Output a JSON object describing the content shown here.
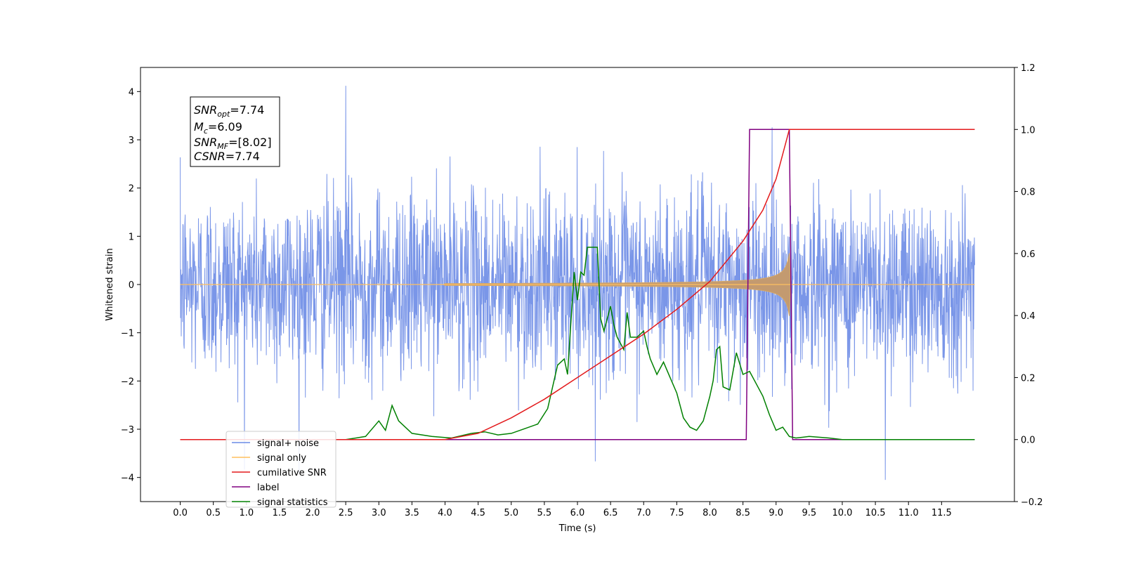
{
  "chart_data": {
    "type": "line",
    "xlabel": "Time (s)",
    "ylabel": "Whitened strain",
    "xlim": [
      -0.6,
      12.6
    ],
    "ylim": [
      -4.5,
      4.5
    ],
    "y2lim": [
      -0.2,
      1.2
    ],
    "grid": false,
    "legend_position": "bottom-left",
    "x_ticks": [
      "0.0",
      "0.5",
      "1.0",
      "1.5",
      "2.0",
      "2.5",
      "3.0",
      "3.5",
      "4.0",
      "4.5",
      "5.0",
      "5.5",
      "6.0",
      "6.5",
      "7.0",
      "7.5",
      "8.0",
      "8.5",
      "9.0",
      "9.5",
      "10.0",
      "10.5",
      "11.0",
      "11.5"
    ],
    "y_ticks": [
      "4",
      "3",
      "2",
      "1",
      "0",
      "−1",
      "−2",
      "−3",
      "−4"
    ],
    "y2_ticks": [
      "1.2",
      "1.0",
      "0.8",
      "0.6",
      "0.4",
      "0.2",
      "0.0",
      "−0.2"
    ],
    "annotation": [
      {
        "base": "SNR",
        "sub": "opt",
        "value": "=7.74"
      },
      {
        "base": "M",
        "sub": "c",
        "value": "=6.09"
      },
      {
        "base": "SNR",
        "sub": "MF",
        "value": "=[8.02]"
      },
      {
        "base": "CSNR",
        "sub": "",
        "value": "=7.74"
      }
    ],
    "signal_window": {
      "start": 4.0,
      "end": 9.2,
      "peak_amplitude": 0.65
    },
    "series": [
      {
        "name": "signal+ noise",
        "color": "#6b8be6",
        "axis": "left",
        "noise_std": 1.0,
        "max": 4.12,
        "min": -4.05,
        "x_range": [
          0.0,
          12.0
        ]
      },
      {
        "name": "signal only",
        "color": "#ffbf5f",
        "axis": "left"
      },
      {
        "name": "cumilative SNR",
        "color": "#e31a1c",
        "axis": "right",
        "x": [
          0.0,
          4.0,
          4.5,
          5.0,
          5.5,
          6.0,
          6.5,
          7.0,
          7.5,
          8.0,
          8.5,
          8.8,
          9.0,
          9.1,
          9.2,
          9.3,
          12.0
        ],
        "values": [
          0.0,
          0.0,
          0.02,
          0.07,
          0.13,
          0.2,
          0.27,
          0.34,
          0.42,
          0.51,
          0.64,
          0.74,
          0.84,
          0.92,
          1.0,
          1.0,
          1.0
        ]
      },
      {
        "name": "label",
        "color": "#800080",
        "axis": "right",
        "x": [
          0.0,
          8.55,
          8.6,
          9.2,
          9.25,
          12.0
        ],
        "values": [
          0.0,
          0.0,
          1.0,
          1.0,
          0.0,
          0.0
        ]
      },
      {
        "name": "signal statistics",
        "color": "#008000",
        "axis": "right",
        "x": [
          0.0,
          2.5,
          2.8,
          3.0,
          3.1,
          3.2,
          3.3,
          3.5,
          3.8,
          4.1,
          4.4,
          4.6,
          4.8,
          5.0,
          5.2,
          5.4,
          5.55,
          5.7,
          5.8,
          5.85,
          5.95,
          6.0,
          6.05,
          6.1,
          6.15,
          6.2,
          6.3,
          6.35,
          6.4,
          6.5,
          6.55,
          6.6,
          6.7,
          6.75,
          6.8,
          6.9,
          7.0,
          7.05,
          7.1,
          7.2,
          7.3,
          7.4,
          7.5,
          7.6,
          7.7,
          7.8,
          7.9,
          8.0,
          8.05,
          8.1,
          8.15,
          8.2,
          8.3,
          8.4,
          8.5,
          8.6,
          8.7,
          8.8,
          8.9,
          9.0,
          9.1,
          9.2,
          9.3,
          9.5,
          9.8,
          10.0,
          12.0
        ],
        "values": [
          0.0,
          0.0,
          0.01,
          0.06,
          0.03,
          0.11,
          0.06,
          0.02,
          0.01,
          0.005,
          0.02,
          0.025,
          0.015,
          0.02,
          0.035,
          0.05,
          0.1,
          0.24,
          0.26,
          0.21,
          0.54,
          0.45,
          0.54,
          0.53,
          0.62,
          0.62,
          0.62,
          0.39,
          0.35,
          0.43,
          0.37,
          0.33,
          0.29,
          0.41,
          0.33,
          0.33,
          0.35,
          0.3,
          0.26,
          0.21,
          0.25,
          0.2,
          0.15,
          0.07,
          0.04,
          0.03,
          0.06,
          0.14,
          0.19,
          0.29,
          0.3,
          0.17,
          0.16,
          0.28,
          0.21,
          0.22,
          0.18,
          0.14,
          0.08,
          0.03,
          0.04,
          0.01,
          0.005,
          0.01,
          0.005,
          0.0,
          0.0
        ]
      }
    ]
  }
}
